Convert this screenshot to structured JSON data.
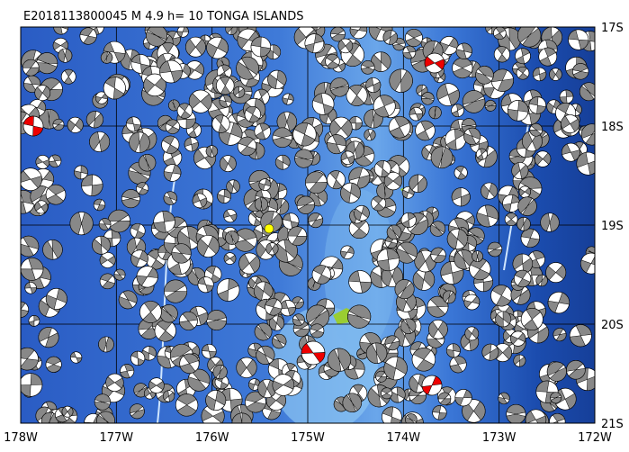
{
  "title": "E2018113800045 M 4.9  h= 10  TONGA ISLANDS",
  "x_labels": [
    "178W",
    "177W",
    "176W",
    "175W",
    "174W",
    "173W",
    "172W"
  ],
  "y_labels": [
    "17S",
    "18S",
    "19S",
    "20S",
    "21S"
  ]
}
